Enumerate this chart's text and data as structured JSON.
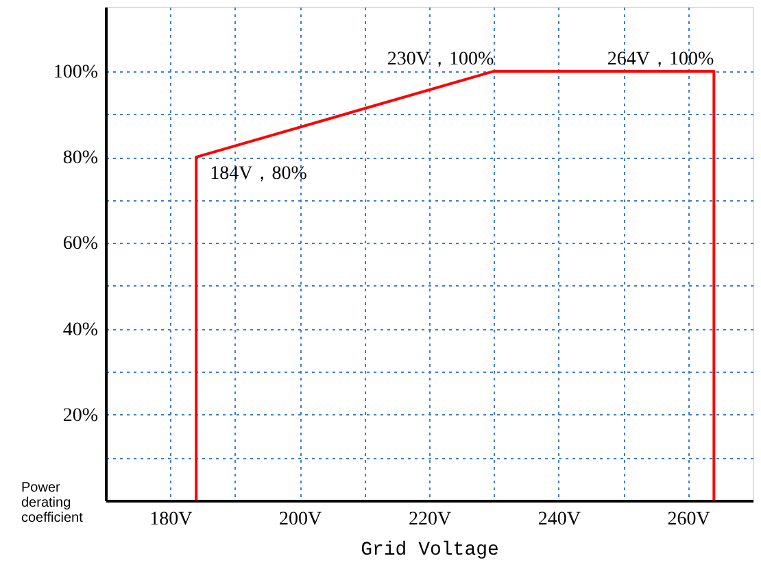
{
  "chart_data": {
    "type": "line",
    "xlabel": "Grid Voltage",
    "ylabel": "Power derating coefficient",
    "xlim": [
      170,
      270
    ],
    "ylim": [
      0,
      115
    ],
    "xticks": [
      {
        "value": 180,
        "label": "180V"
      },
      {
        "value": 190,
        "label": null
      },
      {
        "value": 200,
        "label": "200V"
      },
      {
        "value": 210,
        "label": null
      },
      {
        "value": 220,
        "label": "220V"
      },
      {
        "value": 230,
        "label": null
      },
      {
        "value": 240,
        "label": "240V"
      },
      {
        "value": 250,
        "label": null
      },
      {
        "value": 260,
        "label": "260V"
      }
    ],
    "yticks": [
      {
        "value": 10,
        "label": null
      },
      {
        "value": 20,
        "label": "20%"
      },
      {
        "value": 30,
        "label": null
      },
      {
        "value": 40,
        "label": "40%"
      },
      {
        "value": 50,
        "label": null
      },
      {
        "value": 60,
        "label": "60%"
      },
      {
        "value": 70,
        "label": null
      },
      {
        "value": 80,
        "label": "80%"
      },
      {
        "value": 90,
        "label": null
      },
      {
        "value": 100,
        "label": "100%"
      }
    ],
    "grid": true,
    "line_style": "solid",
    "marker": "none",
    "series": [
      {
        "color": "#ff0000",
        "x": [
          184,
          184,
          230,
          264,
          264
        ],
        "values": [
          0,
          80,
          100,
          100,
          0
        ]
      }
    ],
    "annotations": [
      {
        "text": "184V，80%",
        "x": 184,
        "y": 80
      },
      {
        "text": "230V，100%",
        "x": 230,
        "y": 100
      },
      {
        "text": "264V，100%",
        "x": 264,
        "y": 100
      }
    ]
  }
}
